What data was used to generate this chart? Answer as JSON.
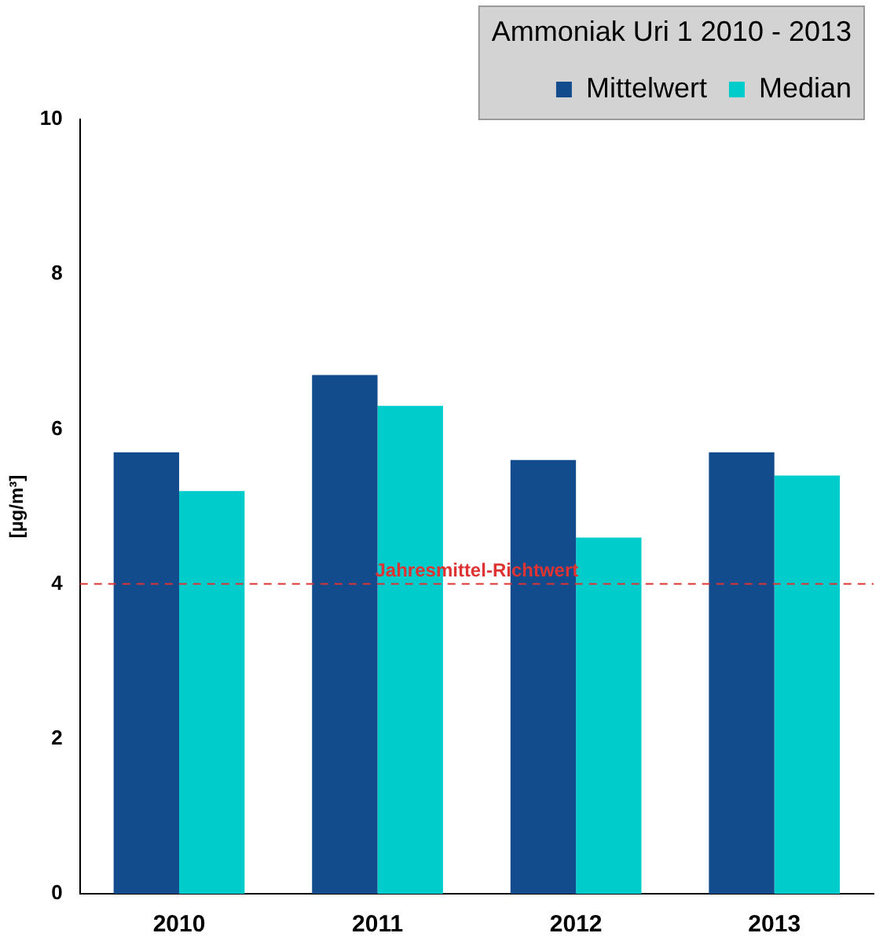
{
  "chart_data": {
    "type": "bar",
    "legend_title": "Ammoniak Uri 1 2010 - 2013",
    "ylabel": "[µg/m³]",
    "categories": [
      "2010",
      "2011",
      "2012",
      "2013"
    ],
    "series": [
      {
        "name": "Mittelwert",
        "color": "#124c8c",
        "values": [
          5.7,
          6.7,
          5.6,
          5.7
        ]
      },
      {
        "name": "Median",
        "color": "#00cccc",
        "values": [
          5.2,
          6.3,
          4.6,
          5.4
        ]
      }
    ],
    "ylim": [
      0,
      10
    ],
    "yticks": [
      0,
      2,
      4,
      6,
      8,
      10
    ],
    "grid": false,
    "legend": "top right",
    "ref_lines": [
      {
        "axis": "y",
        "value": 4,
        "label": "Jahresmittel-Richtwert",
        "color": "#dd3333",
        "line_style": "dashed"
      }
    ]
  }
}
